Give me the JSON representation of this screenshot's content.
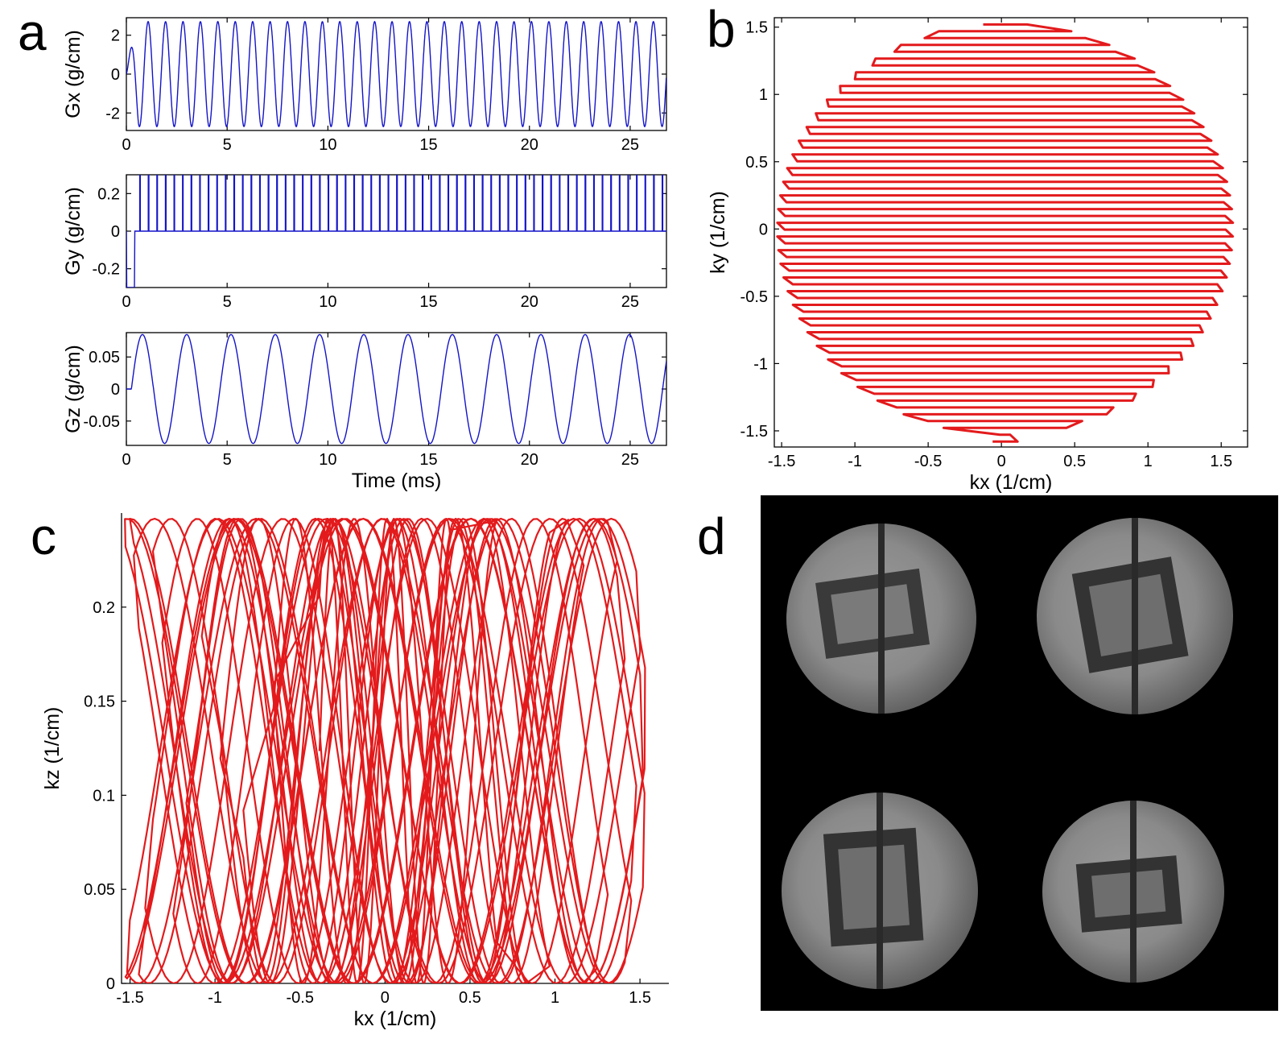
{
  "figure": {
    "panels": [
      {
        "letter": "a"
      },
      {
        "letter": "b"
      },
      {
        "letter": "c"
      },
      {
        "letter": "d"
      }
    ]
  },
  "chart_data": [
    {
      "id": "a-gx",
      "type": "line",
      "xlabel": "",
      "ylabel": "Gx (g/cm)",
      "xlim": [
        0,
        26.8
      ],
      "ylim": [
        -2.9,
        2.9
      ],
      "xticks": [
        0,
        5,
        10,
        15,
        20,
        25
      ],
      "yticks": [
        -2,
        0,
        2
      ],
      "color": "#1414c8",
      "waveform": {
        "shape": "sine",
        "cycles": 31,
        "amplitude": 2.7,
        "start_amplitude": 0.5,
        "ramp_ms": 0.6,
        "duration_ms": 26.8
      }
    },
    {
      "id": "a-gy",
      "type": "line",
      "xlabel": "",
      "ylabel": "Gy (g/cm)",
      "xlim": [
        0,
        26.8
      ],
      "ylim": [
        -0.3,
        0.3
      ],
      "xticks": [
        0,
        5,
        10,
        15,
        20,
        25
      ],
      "yticks": [
        -0.2,
        0,
        0.2
      ],
      "color": "#1414c8",
      "waveform": {
        "shape": "blips",
        "prephaser": -0.3,
        "prephaser_end_ms": 0.4,
        "blip_amplitude": 0.3,
        "blip_count": 62,
        "duration_ms": 26.8
      }
    },
    {
      "id": "a-gz",
      "type": "line",
      "xlabel": "Time (ms)",
      "ylabel": "Gz (g/cm)",
      "xlim": [
        0,
        26.8
      ],
      "ylim": [
        -0.088,
        0.088
      ],
      "xticks": [
        0,
        5,
        10,
        15,
        20,
        25
      ],
      "yticks": [
        -0.05,
        0,
        0.05
      ],
      "color": "#1414c8",
      "waveform": {
        "shape": "sine",
        "cycles": 12.2,
        "amplitude": 0.085,
        "duration_ms": 26.8
      }
    },
    {
      "id": "b",
      "type": "scatter",
      "xlabel": "kx (1/cm)",
      "ylabel": "ky (1/cm)",
      "xlim": [
        -1.55,
        1.68
      ],
      "ylim": [
        -1.62,
        1.57
      ],
      "xticks": [
        -1.5,
        -1,
        -0.5,
        0,
        0.5,
        1,
        1.5
      ],
      "yticks": [
        -1.5,
        -1,
        -0.5,
        0,
        0.5,
        1,
        1.5
      ],
      "color": "#e31a1c",
      "trajectory": {
        "pattern": "echo-planar circular",
        "lines": 62,
        "kmax": 1.53,
        "ky_start": 1.52,
        "ky_end": -1.58
      }
    },
    {
      "id": "c",
      "type": "scatter",
      "xlabel": "kx (1/cm)",
      "ylabel": "kz (1/cm)",
      "xlim": [
        -1.55,
        1.67
      ],
      "ylim": [
        0,
        0.25
      ],
      "xticks": [
        -1.5,
        -1,
        -0.5,
        0,
        0.5,
        1,
        1.5
      ],
      "yticks": [
        0,
        0.05,
        0.1,
        0.15,
        0.2
      ],
      "color": "#e31a1c",
      "trajectory": {
        "pattern": "wave",
        "kz_min": 0,
        "kz_max": 0.247,
        "lines": 31
      }
    }
  ]
}
